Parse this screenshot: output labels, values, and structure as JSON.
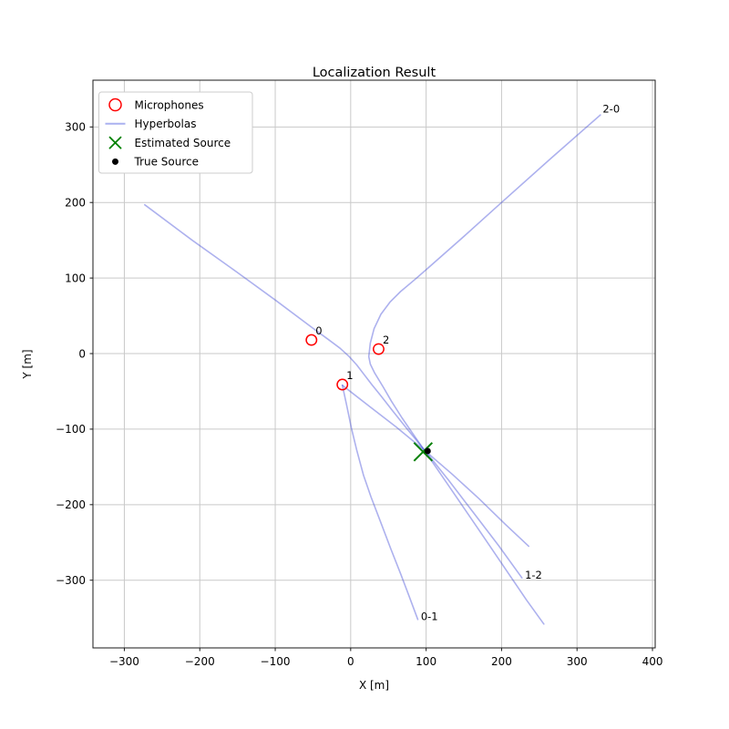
{
  "title": "Localization Result",
  "axes": {
    "xlabel": "X [m]",
    "ylabel": "Y [m]",
    "xlim": [
      -341.6,
      403.6
    ],
    "ylim": [
      -389.6,
      361.9
    ],
    "xticks": [
      -300,
      -200,
      -100,
      0,
      100,
      200,
      300,
      400
    ],
    "xtick_labels": [
      "−300",
      "−200",
      "−100",
      "0",
      "100",
      "200",
      "300",
      "400"
    ],
    "yticks": [
      -300,
      -200,
      -100,
      0,
      100,
      200,
      300
    ],
    "ytick_labels": [
      "−300",
      "−200",
      "−100",
      "0",
      "100",
      "200",
      "300"
    ],
    "grid": true
  },
  "legend": {
    "position": "upper left",
    "items": [
      {
        "marker": "circle-open",
        "label": "Microphones",
        "color": "#ff0000"
      },
      {
        "marker": "line",
        "label": "Hyperbolas",
        "color": "#aab1f0"
      },
      {
        "marker": "x",
        "label": "Estimated Source",
        "color": "#008000"
      },
      {
        "marker": "dot",
        "label": "True Source",
        "color": "#000000"
      }
    ]
  },
  "chart_data": {
    "type": "scatter",
    "title": "Localization Result",
    "xlabel": "X [m]",
    "ylabel": "Y [m]",
    "microphones": [
      {
        "id": "0",
        "x": -52,
        "y": 18
      },
      {
        "id": "1",
        "x": -11,
        "y": -41
      },
      {
        "id": "2",
        "x": 37,
        "y": 6
      }
    ],
    "estimated_source": {
      "x": 96,
      "y": -130
    },
    "true_source": {
      "x": 102,
      "y": -129
    },
    "hyperbolas": [
      {
        "label": "2-0",
        "label_xy": [
          334,
          319
        ],
        "branches": [
          [
            [
              331,
              316
            ],
            [
              265,
              258
            ],
            [
              200,
              200
            ],
            [
              150,
              155
            ],
            [
              100,
              111
            ],
            [
              85,
              98
            ],
            [
              66,
              82
            ],
            [
              52,
              68
            ],
            [
              40,
              52
            ],
            [
              31,
              33
            ],
            [
              26,
              14
            ],
            [
              24,
              -4
            ],
            [
              26,
              -14
            ],
            [
              32,
              -26
            ],
            [
              43,
              -44
            ],
            [
              54,
              -63
            ],
            [
              68,
              -85
            ],
            [
              83,
              -107
            ],
            [
              99,
              -130
            ],
            [
              132,
              -178
            ],
            [
              167,
              -229
            ],
            [
              203,
              -282
            ],
            [
              233,
              -326
            ],
            [
              256,
              -358
            ]
          ]
        ]
      },
      {
        "label": "1-2",
        "label_xy": [
          231,
          -298
        ],
        "branches": [
          [
            [
              -273,
              197
            ],
            [
              -210,
              150
            ],
            [
              -151,
              108
            ],
            [
              -100,
              71
            ],
            [
              -52,
              35
            ],
            [
              -30,
              19
            ],
            [
              -14,
              7
            ],
            [
              -2,
              -4
            ],
            [
              8,
              -15
            ],
            [
              18,
              -28
            ],
            [
              28,
              -41
            ],
            [
              40,
              -56
            ],
            [
              55,
              -75
            ],
            [
              75,
              -100
            ],
            [
              99,
              -129
            ],
            [
              130,
              -168
            ],
            [
              163,
              -211
            ],
            [
              196,
              -254
            ],
            [
              227,
              -297
            ]
          ]
        ]
      },
      {
        "label": "0-1",
        "label_xy": [
          93,
          -353
        ],
        "branches": [
          [
            [
              -11,
              -42
            ],
            [
              25,
              -70
            ],
            [
              60,
              -97
            ],
            [
              99,
              -129
            ],
            [
              135,
              -160
            ],
            [
              170,
              -192
            ],
            [
              205,
              -226
            ],
            [
              236,
              -255
            ]
          ],
          [
            [
              -11,
              -42
            ],
            [
              -5,
              -70
            ],
            [
              1,
              -99
            ],
            [
              8,
              -128
            ],
            [
              17,
              -161
            ],
            [
              27,
              -190
            ],
            [
              40,
              -224
            ],
            [
              53,
              -258
            ],
            [
              66,
              -291
            ],
            [
              77,
              -320
            ],
            [
              89,
              -352
            ]
          ]
        ]
      }
    ]
  },
  "colors": {
    "microphone": "#ff0000",
    "hyperbola": "#3c46d7",
    "hyperbola_opacity": 0.42,
    "estimated_source": "#008000",
    "true_source": "#000000",
    "grid": "#c9c9c9",
    "spine": "#1a1a1a",
    "legend_border": "#cccccc",
    "background": "#ffffff"
  }
}
